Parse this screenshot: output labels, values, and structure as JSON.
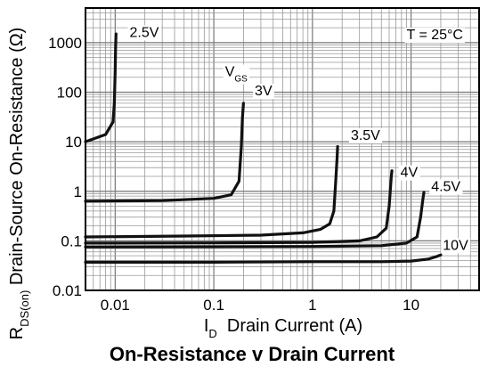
{
  "chart_data": {
    "type": "line",
    "title": "On-Resistance v Drain Current",
    "xlabel": {
      "main": "I",
      "sub": "D",
      "rest": "  Drain Current (A)"
    },
    "ylabel": {
      "main": "R",
      "sub": "DS(on)",
      "rest": " Drain-Source On-Resistance (Ω)"
    },
    "x_scale": "log",
    "y_scale": "log",
    "xlim": [
      0.005,
      50
    ],
    "ylim": [
      0.01,
      5000
    ],
    "x_ticks": [
      {
        "value": 0.01,
        "label": "0.01"
      },
      {
        "value": 0.1,
        "label": "0.1"
      },
      {
        "value": 1,
        "label": "1"
      },
      {
        "value": 10,
        "label": "10"
      }
    ],
    "y_ticks": [
      {
        "value": 0.01,
        "label": "0.01"
      },
      {
        "value": 0.1,
        "label": "0.1"
      },
      {
        "value": 1,
        "label": "1"
      },
      {
        "value": 10,
        "label": "10"
      },
      {
        "value": 100,
        "label": "100"
      },
      {
        "value": 1000,
        "label": "1000"
      }
    ],
    "grid": true,
    "annotations": [
      {
        "text": "T = 25°C",
        "x": 9,
        "y": 1500
      },
      {
        "text": "V",
        "sub": "GS",
        "x": 0.13,
        "y": 270
      }
    ],
    "series": [
      {
        "name": "2.5V",
        "label_at": [
          0.014,
          1680
        ],
        "x": [
          0.005,
          0.008,
          0.0095,
          0.0098,
          0.01,
          0.0101,
          0.0102
        ],
        "y": [
          10,
          14,
          25,
          60,
          250,
          800,
          1500
        ]
      },
      {
        "name": "3V",
        "label_at": [
          0.26,
          110
        ],
        "x": [
          0.005,
          0.03,
          0.1,
          0.15,
          0.18,
          0.19,
          0.195,
          0.2
        ],
        "y": [
          0.63,
          0.65,
          0.72,
          0.85,
          1.6,
          8,
          30,
          60
        ]
      },
      {
        "name": "3.5V",
        "label_at": [
          2.45,
          14
        ],
        "x": [
          0.005,
          0.05,
          0.3,
          0.8,
          1.2,
          1.5,
          1.65,
          1.72,
          1.78,
          1.8
        ],
        "y": [
          0.12,
          0.125,
          0.13,
          0.145,
          0.17,
          0.22,
          0.4,
          1.5,
          5,
          8
        ]
      },
      {
        "name": "4V",
        "label_at": [
          7.8,
          2.5
        ],
        "x": [
          0.005,
          0.1,
          1,
          3,
          4.5,
          5.6,
          6,
          6.3,
          6.4
        ],
        "y": [
          0.09,
          0.091,
          0.093,
          0.1,
          0.12,
          0.18,
          0.5,
          2,
          2.6
        ]
      },
      {
        "name": "4.5V",
        "label_at": [
          16,
          1.3
        ],
        "x": [
          0.005,
          0.1,
          1,
          5,
          9,
          11.5,
          12.5,
          13.2,
          13.5
        ],
        "y": [
          0.075,
          0.076,
          0.077,
          0.08,
          0.09,
          0.12,
          0.3,
          0.7,
          0.95
        ]
      },
      {
        "name": "10V",
        "label_at": [
          21,
          0.085
        ],
        "x": [
          0.005,
          0.1,
          1,
          5,
          10,
          15,
          18,
          20
        ],
        "y": [
          0.037,
          0.037,
          0.038,
          0.038,
          0.039,
          0.043,
          0.048,
          0.052
        ]
      }
    ]
  }
}
